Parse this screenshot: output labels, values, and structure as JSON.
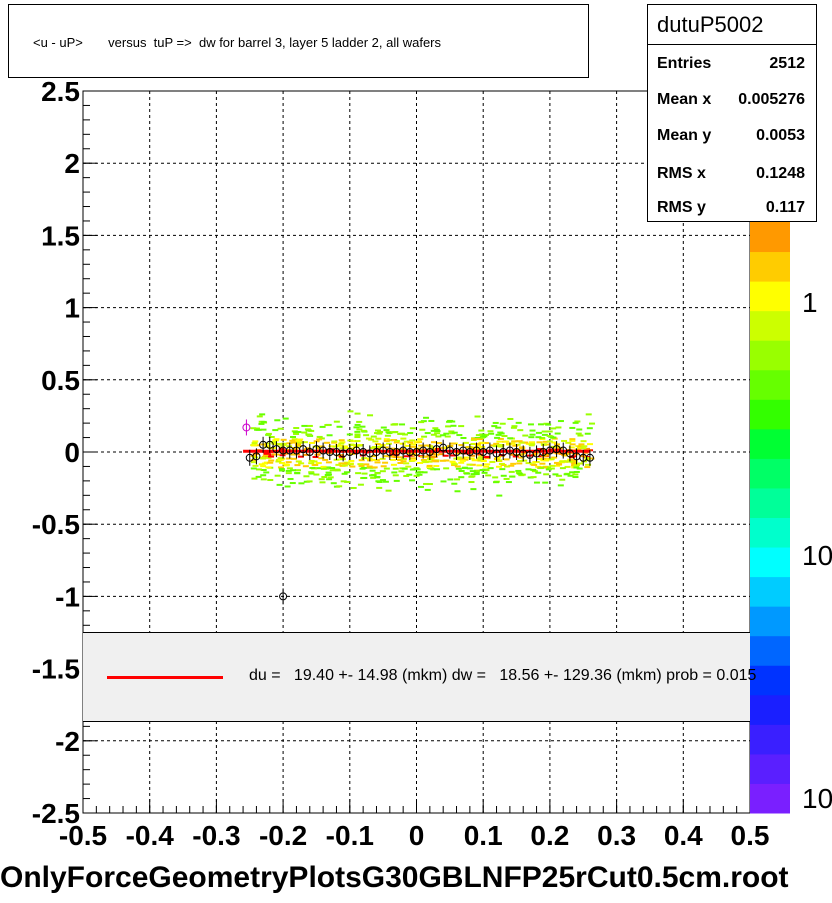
{
  "title": "<u - uP>       versus  tuP =>  dw for barrel 3, layer 5 ladder 2, all wafers",
  "stats": {
    "name": "dutuP5002",
    "rows": [
      {
        "label": "Entries",
        "value": "2512"
      },
      {
        "label": "Mean x",
        "value": "0.005276"
      },
      {
        "label": "Mean y",
        "value": "0.0053"
      },
      {
        "label": "RMS x",
        "value": "0.1248"
      },
      {
        "label": "RMS y",
        "value": "0.117"
      }
    ]
  },
  "legend": {
    "text": "du =   19.40 +- 14.98 (mkm) dw =   18.56 +- 129.36 (mkm) prob = 0.015",
    "line_color": "#ff0000"
  },
  "bottom_label": "OnlyForceGeometryPlotsG30GBLNFP25rCut0.5cm.root",
  "colorbar": {
    "labels": [
      "1",
      "10",
      "10"
    ]
  },
  "chart_data": {
    "type": "scatter",
    "title": "<u - uP>       versus  tuP =>  dw for barrel 3, layer 5 ladder 2, all wafers",
    "xlim": [
      -0.5,
      0.5
    ],
    "ylim": [
      -2.5,
      2.5
    ],
    "xticks": [
      "-0.5",
      "-0.4",
      "-0.3",
      "-0.2",
      "-0.1",
      "0",
      "0.1",
      "0.2",
      "0.3",
      "0.4",
      "0.5"
    ],
    "yticks": [
      "-2.5",
      "-2",
      "-1.5",
      "-1",
      "-0.5",
      "0",
      "0.5",
      "1",
      "1.5",
      "2",
      "2.5"
    ],
    "grid": true,
    "series": [
      {
        "color": "#000000",
        "points": [
          {
            "x": -0.25,
            "y": -0.04
          },
          {
            "x": -0.24,
            "y": -0.03
          },
          {
            "x": -0.23,
            "y": 0.05
          },
          {
            "x": -0.22,
            "y": 0.05
          },
          {
            "x": -0.21,
            "y": 0.02
          },
          {
            "x": -0.2,
            "y": 0.01
          },
          {
            "x": -0.19,
            "y": 0.01
          },
          {
            "x": -0.18,
            "y": 0.01
          },
          {
            "x": -0.17,
            "y": 0.02
          },
          {
            "x": -0.16,
            "y": 0.0
          },
          {
            "x": -0.15,
            "y": 0.02
          },
          {
            "x": -0.14,
            "y": 0.01
          },
          {
            "x": -0.13,
            "y": 0.0
          },
          {
            "x": -0.12,
            "y": 0.0
          },
          {
            "x": -0.11,
            "y": -0.01
          },
          {
            "x": -0.1,
            "y": 0.0
          },
          {
            "x": -0.09,
            "y": 0.01
          },
          {
            "x": -0.08,
            "y": 0.0
          },
          {
            "x": -0.07,
            "y": -0.01
          },
          {
            "x": -0.06,
            "y": 0.0
          },
          {
            "x": -0.05,
            "y": 0.01
          },
          {
            "x": -0.04,
            "y": 0.0
          },
          {
            "x": -0.03,
            "y": 0.0
          },
          {
            "x": -0.02,
            "y": 0.01
          },
          {
            "x": -0.01,
            "y": 0.0
          },
          {
            "x": 0.0,
            "y": 0.0
          },
          {
            "x": 0.01,
            "y": 0.01
          },
          {
            "x": 0.02,
            "y": 0.0
          },
          {
            "x": 0.03,
            "y": 0.02
          },
          {
            "x": 0.04,
            "y": 0.03
          },
          {
            "x": 0.05,
            "y": 0.01
          },
          {
            "x": 0.06,
            "y": 0.0
          },
          {
            "x": 0.07,
            "y": 0.01
          },
          {
            "x": 0.08,
            "y": 0.0
          },
          {
            "x": 0.09,
            "y": 0.01
          },
          {
            "x": 0.1,
            "y": 0.0
          },
          {
            "x": 0.11,
            "y": 0.01
          },
          {
            "x": 0.12,
            "y": -0.01
          },
          {
            "x": 0.13,
            "y": 0.0
          },
          {
            "x": 0.14,
            "y": 0.01
          },
          {
            "x": 0.15,
            "y": 0.0
          },
          {
            "x": 0.16,
            "y": -0.01
          },
          {
            "x": 0.17,
            "y": -0.02
          },
          {
            "x": 0.18,
            "y": -0.01
          },
          {
            "x": 0.19,
            "y": 0.0
          },
          {
            "x": 0.2,
            "y": 0.01
          },
          {
            "x": 0.21,
            "y": 0.02
          },
          {
            "x": 0.22,
            "y": 0.01
          },
          {
            "x": 0.23,
            "y": -0.01
          },
          {
            "x": 0.24,
            "y": -0.03
          },
          {
            "x": 0.25,
            "y": -0.04
          },
          {
            "x": 0.26,
            "y": -0.04
          },
          {
            "x": -0.2,
            "y": -1.0
          }
        ]
      },
      {
        "color": "#cc00cc",
        "points": [
          {
            "x": -0.255,
            "y": 0.17
          }
        ]
      }
    ]
  }
}
